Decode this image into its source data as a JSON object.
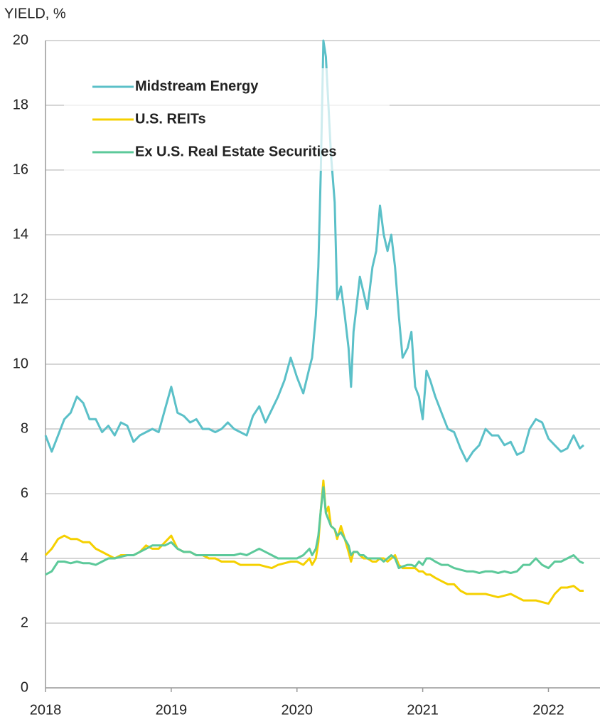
{
  "chart_data": {
    "type": "line",
    "y_label": "YIELD, %",
    "x": [
      2018.0,
      2018.05,
      2018.1,
      2018.15,
      2018.2,
      2018.25,
      2018.3,
      2018.35,
      2018.4,
      2018.45,
      2018.5,
      2018.55,
      2018.6,
      2018.65,
      2018.7,
      2018.75,
      2018.8,
      2018.85,
      2018.9,
      2018.95,
      2019.0,
      2019.05,
      2019.1,
      2019.15,
      2019.2,
      2019.25,
      2019.3,
      2019.35,
      2019.4,
      2019.45,
      2019.5,
      2019.55,
      2019.6,
      2019.65,
      2019.7,
      2019.75,
      2019.8,
      2019.85,
      2019.9,
      2019.95,
      2020.0,
      2020.05,
      2020.1,
      2020.12,
      2020.15,
      2020.17,
      2020.19,
      2020.21,
      2020.23,
      2020.25,
      2020.27,
      2020.3,
      2020.32,
      2020.35,
      2020.38,
      2020.41,
      2020.43,
      2020.45,
      2020.48,
      2020.5,
      2020.53,
      2020.56,
      2020.6,
      2020.63,
      2020.66,
      2020.69,
      2020.72,
      2020.75,
      2020.78,
      2020.81,
      2020.84,
      2020.88,
      2020.91,
      2020.94,
      2020.97,
      2021.0,
      2021.03,
      2021.06,
      2021.1,
      2021.15,
      2021.2,
      2021.25,
      2021.3,
      2021.35,
      2021.4,
      2021.45,
      2021.5,
      2021.55,
      2021.6,
      2021.65,
      2021.7,
      2021.75,
      2021.8,
      2021.85,
      2021.9,
      2021.95,
      2022.0,
      2022.05,
      2022.1,
      2022.15,
      2022.2,
      2022.25,
      2022.28
    ],
    "series": [
      {
        "name": "Midstream Energy",
        "color": "#5bc0c8",
        "values": [
          7.8,
          7.3,
          7.8,
          8.3,
          8.5,
          9.0,
          8.8,
          8.3,
          8.3,
          7.9,
          8.1,
          7.8,
          8.2,
          8.1,
          7.6,
          7.8,
          7.9,
          8.0,
          7.9,
          8.6,
          9.3,
          8.5,
          8.4,
          8.2,
          8.3,
          8.0,
          8.0,
          7.9,
          8.0,
          8.2,
          8.0,
          7.9,
          7.8,
          8.4,
          8.7,
          8.2,
          8.6,
          9.0,
          9.5,
          10.2,
          9.6,
          9.1,
          9.9,
          10.2,
          11.5,
          13.0,
          16.0,
          20.0,
          19.5,
          18.0,
          16.5,
          15.0,
          12.0,
          12.4,
          11.5,
          10.5,
          9.3,
          11.0,
          12.0,
          12.7,
          12.2,
          11.7,
          13.0,
          13.5,
          14.9,
          14.0,
          13.5,
          14.0,
          13.0,
          11.5,
          10.2,
          10.5,
          11.0,
          9.3,
          9.0,
          8.3,
          9.8,
          9.5,
          9.0,
          8.5,
          8.0,
          7.9,
          7.4,
          7.0,
          7.3,
          7.5,
          8.0,
          7.8,
          7.8,
          7.5,
          7.6,
          7.2,
          7.3,
          8.0,
          8.3,
          8.2,
          7.7,
          7.5,
          7.3,
          7.4,
          7.8,
          7.4,
          7.5
        ]
      },
      {
        "name": "U.S. REITs",
        "color": "#f5d000",
        "values": [
          4.1,
          4.3,
          4.6,
          4.7,
          4.6,
          4.6,
          4.5,
          4.5,
          4.3,
          4.2,
          4.1,
          4.0,
          4.1,
          4.1,
          4.1,
          4.2,
          4.4,
          4.3,
          4.3,
          4.5,
          4.7,
          4.3,
          4.2,
          4.2,
          4.1,
          4.1,
          4.0,
          4.0,
          3.9,
          3.9,
          3.9,
          3.8,
          3.8,
          3.8,
          3.8,
          3.75,
          3.7,
          3.8,
          3.85,
          3.9,
          3.9,
          3.8,
          4.0,
          3.8,
          4.0,
          4.5,
          5.5,
          6.4,
          5.4,
          5.6,
          5.0,
          4.9,
          4.6,
          5.0,
          4.6,
          4.2,
          3.9,
          4.2,
          4.2,
          4.1,
          4.0,
          4.0,
          3.9,
          3.9,
          4.0,
          4.0,
          3.9,
          4.0,
          4.1,
          3.8,
          3.7,
          3.7,
          3.7,
          3.7,
          3.6,
          3.6,
          3.5,
          3.5,
          3.4,
          3.3,
          3.2,
          3.2,
          3.0,
          2.9,
          2.9,
          2.9,
          2.9,
          2.85,
          2.8,
          2.85,
          2.9,
          2.8,
          2.7,
          2.7,
          2.7,
          2.65,
          2.6,
          2.9,
          3.1,
          3.1,
          3.15,
          3.0,
          3.0
        ]
      },
      {
        "name": "Ex U.S. Real Estate Securities",
        "color": "#5cc99a",
        "values": [
          3.5,
          3.6,
          3.9,
          3.9,
          3.85,
          3.9,
          3.85,
          3.85,
          3.8,
          3.9,
          4.0,
          4.0,
          4.05,
          4.1,
          4.1,
          4.2,
          4.3,
          4.4,
          4.4,
          4.4,
          4.5,
          4.3,
          4.2,
          4.2,
          4.1,
          4.1,
          4.1,
          4.1,
          4.1,
          4.1,
          4.1,
          4.15,
          4.1,
          4.2,
          4.3,
          4.2,
          4.1,
          4.0,
          4.0,
          4.0,
          4.0,
          4.1,
          4.3,
          4.1,
          4.3,
          4.7,
          5.5,
          6.2,
          5.4,
          5.2,
          5.0,
          4.9,
          4.7,
          4.8,
          4.6,
          4.4,
          4.1,
          4.2,
          4.2,
          4.1,
          4.1,
          4.0,
          4.0,
          4.0,
          4.0,
          3.9,
          4.0,
          4.1,
          4.0,
          3.7,
          3.75,
          3.8,
          3.8,
          3.75,
          3.9,
          3.8,
          4.0,
          4.0,
          3.9,
          3.8,
          3.8,
          3.7,
          3.65,
          3.6,
          3.6,
          3.55,
          3.6,
          3.6,
          3.55,
          3.6,
          3.55,
          3.6,
          3.8,
          3.8,
          4.0,
          3.8,
          3.7,
          3.9,
          3.9,
          4.0,
          4.1,
          3.9,
          3.85
        ]
      }
    ],
    "xlim": [
      2018,
      2022.41
    ],
    "xticks": [
      2018,
      2019,
      2020,
      2021,
      2022
    ],
    "ylim": [
      0,
      20
    ],
    "yticks": [
      0,
      2,
      4,
      6,
      8,
      10,
      12,
      14,
      16,
      18,
      20
    ],
    "grid": true,
    "legend": "upper left"
  }
}
